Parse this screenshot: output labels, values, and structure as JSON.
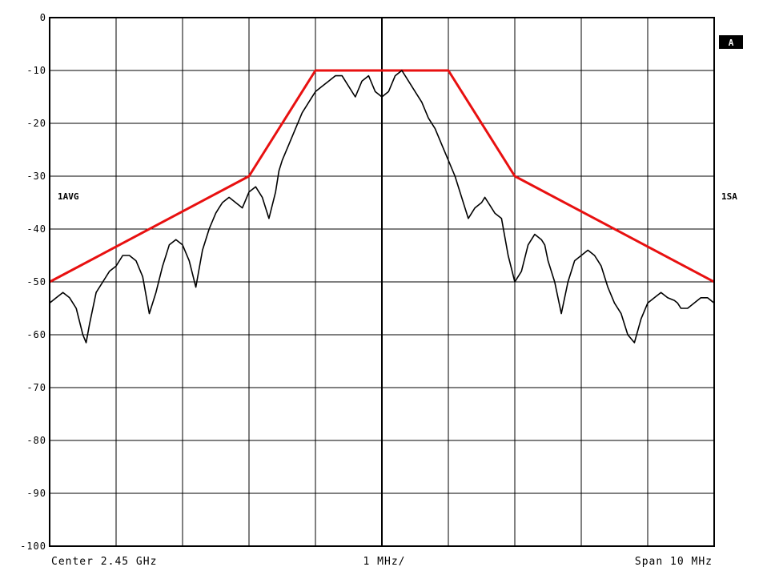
{
  "chart_data": {
    "type": "line",
    "ylim": [
      -100,
      0
    ],
    "y_ticks": [
      "0",
      "-10",
      "-20",
      "-30",
      "-40",
      "-50",
      "-60",
      "-70",
      "-80",
      "-90",
      "-100"
    ],
    "x_divisions": 10,
    "grid": true,
    "footer": {
      "left": "Center 2.45 GHz",
      "center": "1 MHz/",
      "right": "Span 10 MHz"
    },
    "left_label": "1AVG",
    "right_label": "1SA",
    "badge": "A",
    "mask_color": "#e81010",
    "trace_color": "#000000",
    "x_range": [
      -5,
      5
    ],
    "series": [
      {
        "color": "#e81010",
        "x": [
          -5,
          -2,
          -1,
          1,
          2,
          5
        ],
        "y": [
          -50,
          -30,
          -10,
          -10,
          -30,
          -50
        ]
      },
      {
        "color": "#000000",
        "x": [
          -5.0,
          -4.9,
          -4.8,
          -4.7,
          -4.6,
          -4.5,
          -4.45,
          -4.4,
          -4.3,
          -4.2,
          -4.1,
          -4.0,
          -3.9,
          -3.8,
          -3.7,
          -3.6,
          -3.5,
          -3.4,
          -3.3,
          -3.25,
          -3.2,
          -3.1,
          -3.0,
          -2.9,
          -2.8,
          -2.7,
          -2.6,
          -2.5,
          -2.45,
          -2.4,
          -2.3,
          -2.2,
          -2.1,
          -2.0,
          -1.9,
          -1.8,
          -1.7,
          -1.6,
          -1.55,
          -1.5,
          -1.4,
          -1.3,
          -1.2,
          -1.1,
          -1.0,
          -0.9,
          -0.8,
          -0.7,
          -0.6,
          -0.5,
          -0.4,
          -0.3,
          -0.2,
          -0.1,
          0.0,
          0.1,
          0.2,
          0.3,
          0.4,
          0.5,
          0.6,
          0.7,
          0.8,
          0.9,
          1.0,
          1.1,
          1.2,
          1.3,
          1.4,
          1.5,
          1.55,
          1.6,
          1.7,
          1.8,
          1.9,
          2.0,
          2.1,
          2.2,
          2.3,
          2.4,
          2.45,
          2.5,
          2.6,
          2.7,
          2.8,
          2.9,
          3.0,
          3.1,
          3.2,
          3.25,
          3.3,
          3.4,
          3.5,
          3.6,
          3.7,
          3.8,
          3.9,
          4.0,
          4.1,
          4.2,
          4.3,
          4.4,
          4.45,
          4.5,
          4.6,
          4.7,
          4.8,
          4.9,
          5.0
        ],
        "y": [
          -54,
          -53,
          -52,
          -53,
          -55,
          -60,
          -61.5,
          -58,
          -52,
          -50,
          -48,
          -47,
          -45,
          -45,
          -46,
          -49,
          -56,
          -52,
          -47,
          -45,
          -43,
          -42,
          -43,
          -46,
          -51,
          -44,
          -40,
          -37,
          -36,
          -35,
          -34,
          -35,
          -36,
          -33,
          -32,
          -34,
          -38,
          -33,
          -29,
          -27,
          -24,
          -21,
          -18,
          -16,
          -14,
          -13,
          -12,
          -11,
          -11,
          -13,
          -15,
          -12,
          -11,
          -14,
          -15,
          -14,
          -11,
          -10,
          -12,
          -14,
          -16,
          -19,
          -21,
          -24,
          -27,
          -30,
          -34,
          -38,
          -36,
          -35,
          -34,
          -35,
          -37,
          -38,
          -45,
          -50,
          -48,
          -43,
          -41,
          -42,
          -43,
          -46,
          -50,
          -56,
          -50,
          -46,
          -45,
          -44,
          -45,
          -46,
          -47,
          -51,
          -54,
          -56,
          -60,
          -61.5,
          -57,
          -54,
          -53,
          -52,
          -53,
          -53.5,
          -54,
          -55,
          -55,
          -54,
          -53,
          -53,
          -54
        ]
      }
    ]
  }
}
